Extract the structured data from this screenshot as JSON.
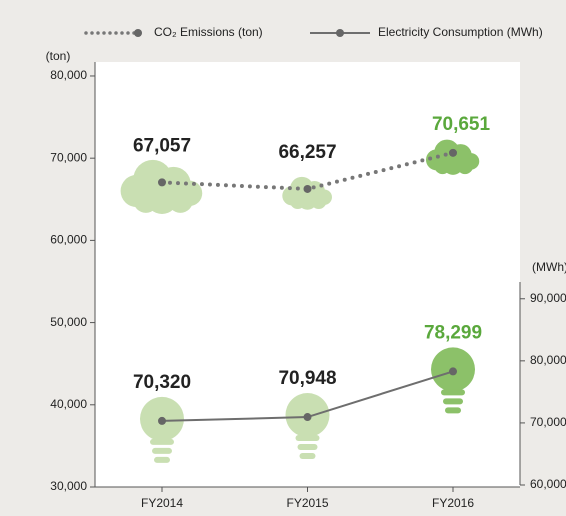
{
  "chart_data": {
    "type": "line",
    "categories": [
      "FY2014",
      "FY2015",
      "FY2016"
    ],
    "ylabel": "(ton)",
    "y2label": "(MWh)",
    "ylim": [
      30000,
      81700
    ],
    "yticks": [
      {
        "value": 30000,
        "label": "30,000"
      },
      {
        "value": 40000,
        "label": "40,000"
      },
      {
        "value": 50000,
        "label": "50,000"
      },
      {
        "value": 60000,
        "label": "60,000"
      },
      {
        "value": 70000,
        "label": "70,000"
      },
      {
        "value": 80000,
        "label": "80,000"
      }
    ],
    "y2lim": [
      60000,
      92700
    ],
    "y2ticks": [
      {
        "value": 60000,
        "label": "60,000"
      },
      {
        "value": 70000,
        "label": "70,000"
      },
      {
        "value": 80000,
        "label": "80,000"
      },
      {
        "value": 90000,
        "label": "90,000"
      }
    ],
    "series": [
      {
        "name": "CO₂ Emissions (ton)",
        "color": "#777777",
        "style": "dotted",
        "values": [
          67057,
          66257,
          70651
        ],
        "value_labels": [
          "67,057",
          "66,257",
          "70,651"
        ],
        "label_colors": [
          "#222222",
          "#222222",
          "#5aa83c"
        ]
      },
      {
        "name": "Electricity Consumption (MWh)",
        "color": "#6e6e6e",
        "style": "solid",
        "axis": "y2",
        "values": [
          70320,
          70948,
          78299
        ],
        "value_labels": [
          "70,320",
          "70,948",
          "78,299"
        ],
        "label_colors": [
          "#222222",
          "#222222",
          "#5aa83c"
        ]
      }
    ]
  }
}
